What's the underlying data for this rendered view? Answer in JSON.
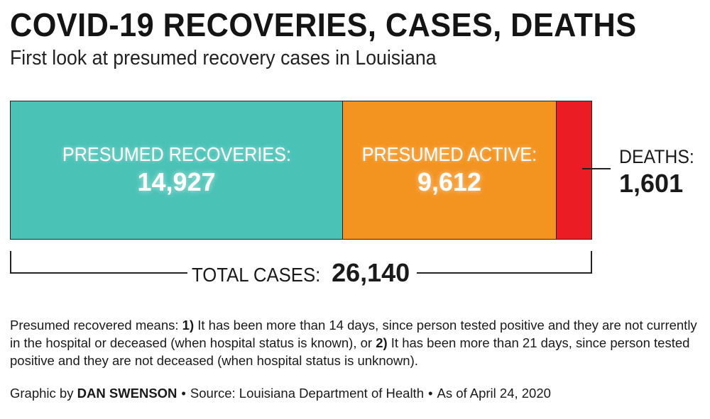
{
  "title": "COVID-19 RECOVERIES, CASES, DEATHS",
  "subtitle": "First look at presumed recovery cases in Louisiana",
  "chart_data": {
    "type": "bar",
    "orientation": "horizontal-stacked",
    "title": "COVID-19 RECOVERIES, CASES, DEATHS",
    "subtitle": "First look at presumed recovery cases in Louisiana",
    "series": [
      {
        "name": "PRESUMED RECOVERIES:",
        "value": 14927,
        "value_label": "14,927",
        "color": "#4bc2b6"
      },
      {
        "name": "PRESUMED ACTIVE:",
        "value": 9612,
        "value_label": "9,612",
        "color": "#f39320"
      },
      {
        "name": "DEATHS:",
        "value": 1601,
        "value_label": "1,601",
        "color": "#ec1c24"
      }
    ],
    "total": {
      "label": "TOTAL CASES:",
      "value": 26140,
      "value_label": "26,140"
    }
  },
  "note": {
    "intro": "Presumed recovered means: ",
    "n1": "1)",
    "t1": " It has been more than 14 days, since person tested positive and they are not currently in the hospital or deceased (when hospital status is known), or ",
    "n2": "2)",
    "t2": " It has been more than 21 days, since person tested positive and they are not deceased (when hospital status is unknown)."
  },
  "credit": {
    "prefix": "Graphic by ",
    "author": "DAN SWENSON",
    "sep": "•",
    "source": "Source: Louisiana Department of Health",
    "date": "As of April 24, 2020"
  }
}
